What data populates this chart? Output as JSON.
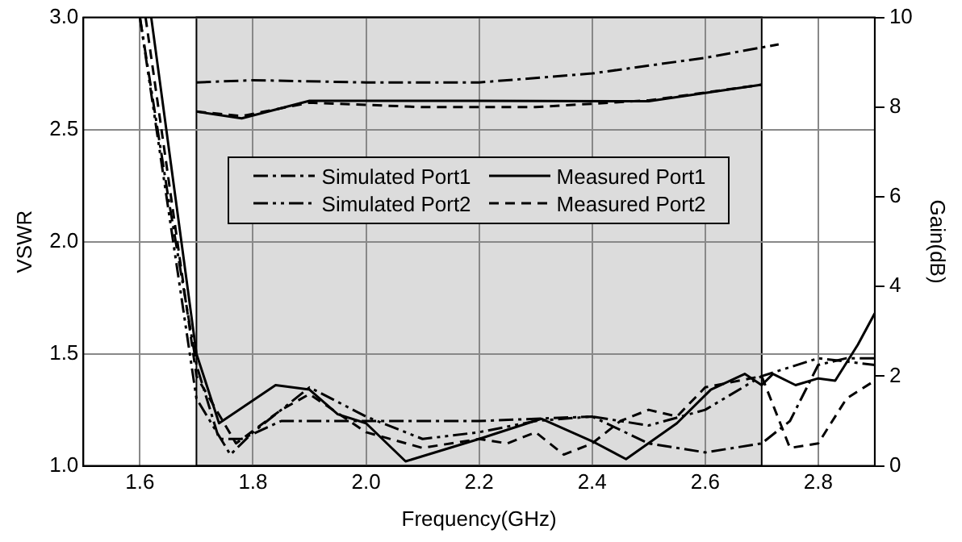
{
  "chart_data": {
    "type": "line",
    "xlabel": "Frequency(GHz)",
    "ylabel": "VSWR",
    "y2label": "Gain(dB)",
    "xlim": [
      1.5,
      2.9
    ],
    "xticks": [
      {
        "value": 1.6,
        "label": "1.6"
      },
      {
        "value": 1.8,
        "label": "1.8"
      },
      {
        "value": 2.0,
        "label": "2.0"
      },
      {
        "value": 2.2,
        "label": "2.2"
      },
      {
        "value": 2.4,
        "label": "2.4"
      },
      {
        "value": 2.6,
        "label": "2.6"
      },
      {
        "value": 2.8,
        "label": "2.8"
      }
    ],
    "ylim": [
      1.0,
      3.0
    ],
    "yticks": [
      {
        "value": 1.0,
        "label": "1.0"
      },
      {
        "value": 1.5,
        "label": "1.5"
      },
      {
        "value": 2.0,
        "label": "2.0"
      },
      {
        "value": 2.5,
        "label": "2.5"
      },
      {
        "value": 3.0,
        "label": "3.0"
      }
    ],
    "y2lim": [
      0,
      10
    ],
    "y2ticks": [
      0,
      2,
      4,
      6,
      8,
      10
    ],
    "grid": true,
    "legend": "center",
    "marker": "none",
    "bands": [
      {
        "axis": "x",
        "from": 1.7,
        "to": 2.7,
        "color": "#dcdcdc"
      }
    ],
    "series": [
      {
        "name": "Simulated Port1",
        "color": "#000000",
        "line_style": "dashdot",
        "x": [
          1.6,
          1.65,
          1.7,
          1.74,
          1.78,
          1.85,
          2.0,
          2.2,
          2.4,
          2.5,
          2.6,
          2.7,
          2.75,
          2.8,
          2.85,
          2.9
        ],
        "values": [
          3.0,
          2.2,
          1.45,
          1.12,
          1.12,
          1.2,
          1.2,
          1.2,
          1.22,
          1.1,
          1.06,
          1.1,
          1.2,
          1.45,
          1.48,
          1.48
        ]
      },
      {
        "name": "Simulated Port2",
        "color": "#000000",
        "line_style": "dashdotdot",
        "x": [
          1.6,
          1.7,
          1.76,
          1.8,
          1.9,
          2.0,
          2.1,
          2.2,
          2.3,
          2.4,
          2.5,
          2.6,
          2.7,
          2.8,
          2.9
        ],
        "values": [
          3.0,
          1.3,
          1.05,
          1.15,
          1.35,
          1.22,
          1.12,
          1.15,
          1.2,
          1.22,
          1.18,
          1.25,
          1.4,
          1.48,
          1.45
        ]
      },
      {
        "name": "Measured Port1",
        "color": "#000000",
        "line_style": "solid",
        "x": [
          1.62,
          1.7,
          1.74,
          1.84,
          1.9,
          1.95,
          2.0,
          2.07,
          2.2,
          2.31,
          2.4,
          2.46,
          2.55,
          2.61,
          2.67,
          2.7,
          2.72,
          2.76,
          2.8,
          2.83,
          2.87,
          2.9
        ],
        "values": [
          3.0,
          1.5,
          1.19,
          1.36,
          1.34,
          1.23,
          1.19,
          1.02,
          1.12,
          1.21,
          1.11,
          1.03,
          1.19,
          1.34,
          1.41,
          1.36,
          1.41,
          1.36,
          1.39,
          1.38,
          1.54,
          1.68
        ]
      },
      {
        "name": "Measured Port2",
        "color": "#000000",
        "line_style": "dashed",
        "x": [
          1.61,
          1.7,
          1.77,
          1.85,
          1.9,
          2.0,
          2.1,
          2.2,
          2.25,
          2.3,
          2.35,
          2.4,
          2.45,
          2.5,
          2.55,
          2.6,
          2.7,
          2.75,
          2.8,
          2.85,
          2.9
        ],
        "values": [
          3.0,
          1.4,
          1.1,
          1.25,
          1.32,
          1.15,
          1.08,
          1.12,
          1.1,
          1.15,
          1.05,
          1.1,
          1.2,
          1.25,
          1.22,
          1.35,
          1.4,
          1.08,
          1.1,
          1.3,
          1.38
        ]
      },
      {
        "color": "#000000",
        "line_style": "dashdot",
        "axis": "y2",
        "x": [
          1.7,
          1.8,
          2.0,
          2.2,
          2.4,
          2.6,
          2.73
        ],
        "values": [
          8.55,
          8.6,
          8.55,
          8.55,
          8.75,
          9.1,
          9.4
        ]
      },
      {
        "color": "#000000",
        "line_style": "solid",
        "axis": "y2",
        "x": [
          1.7,
          1.78,
          1.9,
          2.2,
          2.5,
          2.7
        ],
        "values": [
          7.9,
          7.75,
          8.14,
          8.14,
          8.13,
          8.5
        ]
      },
      {
        "color": "#000000",
        "line_style": "dashed",
        "axis": "y2",
        "x": [
          1.7,
          1.78,
          1.9,
          2.1,
          2.3,
          2.5,
          2.7
        ],
        "values": [
          7.9,
          7.8,
          8.1,
          8.0,
          8.0,
          8.15,
          8.5
        ]
      }
    ]
  }
}
